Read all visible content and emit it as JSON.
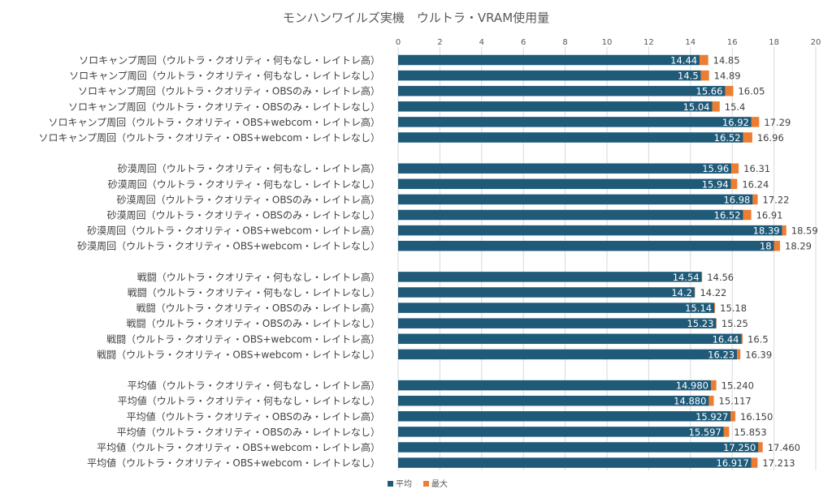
{
  "chart_data": {
    "type": "bar",
    "orientation": "horizontal",
    "stacked": true,
    "title": "モンハンワイルズ実機　ウルトラ・VRAM使用量",
    "xlim": [
      0,
      20
    ],
    "x_ticks": [
      "0",
      "2",
      "4",
      "6",
      "8",
      "10",
      "12",
      "14",
      "16",
      "18",
      "20"
    ],
    "grid": true,
    "legend_position": "bottom",
    "colors": {
      "avg": "#1f5a78",
      "max": "#ed7d31"
    },
    "series": [
      {
        "name": "平均",
        "color": "#1f5a78"
      },
      {
        "name": "最大",
        "color": "#ed7d31"
      }
    ],
    "groups": [
      {
        "rows": [
          {
            "label": "ソロキャンプ周回（ウルトラ・クオリティ・何もなし・レイトレ高）",
            "avg": 14.44,
            "max": 14.85,
            "avg_label": "14.44",
            "max_label": "14.85"
          },
          {
            "label": "ソロキャンプ周回（ウルトラ・クオリティ・何もなし・レイトレなし）",
            "avg": 14.5,
            "max": 14.89,
            "avg_label": "14.5",
            "max_label": "14.89"
          },
          {
            "label": "ソロキャンプ周回（ウルトラ・クオリティ・OBSのみ・レイトレ高）",
            "avg": 15.66,
            "max": 16.05,
            "avg_label": "15.66",
            "max_label": "16.05"
          },
          {
            "label": "ソロキャンプ周回（ウルトラ・クオリティ・OBSのみ・レイトレなし）",
            "avg": 15.04,
            "max": 15.4,
            "avg_label": "15.04",
            "max_label": "15.4"
          },
          {
            "label": "ソロキャンプ周回（ウルトラ・クオリティ・OBS+webcom・レイトレ高）",
            "avg": 16.92,
            "max": 17.29,
            "avg_label": "16.92",
            "max_label": "17.29"
          },
          {
            "label": "ソロキャンプ周回（ウルトラ・クオリティ・OBS+webcom・レイトレなし）",
            "avg": 16.52,
            "max": 16.96,
            "avg_label": "16.52",
            "max_label": "16.96"
          }
        ]
      },
      {
        "rows": [
          {
            "label": "砂漠周回（ウルトラ・クオリティ・何もなし・レイトレ高）",
            "avg": 15.96,
            "max": 16.31,
            "avg_label": "15.96",
            "max_label": "16.31"
          },
          {
            "label": "砂漠周回（ウルトラ・クオリティ・何もなし・レイトレなし）",
            "avg": 15.94,
            "max": 16.24,
            "avg_label": "15.94",
            "max_label": "16.24"
          },
          {
            "label": "砂漠周回（ウルトラ・クオリティ・OBSのみ・レイトレ高）",
            "avg": 16.98,
            "max": 17.22,
            "avg_label": "16.98",
            "max_label": "17.22"
          },
          {
            "label": "砂漠周回（ウルトラ・クオリティ・OBSのみ・レイトレなし）",
            "avg": 16.52,
            "max": 16.91,
            "avg_label": "16.52",
            "max_label": "16.91"
          },
          {
            "label": "砂漠周回（ウルトラ・クオリティ・OBS+webcom・レイトレ高）",
            "avg": 18.39,
            "max": 18.59,
            "avg_label": "18.39",
            "max_label": "18.59"
          },
          {
            "label": "砂漠周回（ウルトラ・クオリティ・OBS+webcom・レイトレなし）",
            "avg": 18,
            "max": 18.29,
            "avg_label": "18",
            "max_label": "18.29"
          }
        ]
      },
      {
        "rows": [
          {
            "label": "戦闘（ウルトラ・クオリティ・何もなし・レイトレ高）",
            "avg": 14.54,
            "max": 14.56,
            "avg_label": "14.54",
            "max_label": "14.56"
          },
          {
            "label": "戦闘（ウルトラ・クオリティ・何もなし・レイトレなし）",
            "avg": 14.2,
            "max": 14.22,
            "avg_label": "14.2",
            "max_label": "14.22"
          },
          {
            "label": "戦闘（ウルトラ・クオリティ・OBSのみ・レイトレ高）",
            "avg": 15.14,
            "max": 15.18,
            "avg_label": "15.14",
            "max_label": "15.18"
          },
          {
            "label": "戦闘（ウルトラ・クオリティ・OBSのみ・レイトレなし）",
            "avg": 15.23,
            "max": 15.25,
            "avg_label": "15.23",
            "max_label": "15.25"
          },
          {
            "label": "戦闘（ウルトラ・クオリティ・OBS+webcom・レイトレ高）",
            "avg": 16.44,
            "max": 16.5,
            "avg_label": "16.44",
            "max_label": "16.5"
          },
          {
            "label": "戦闘（ウルトラ・クオリティ・OBS+webcom・レイトレなし）",
            "avg": 16.23,
            "max": 16.39,
            "avg_label": "16.23",
            "max_label": "16.39"
          }
        ]
      },
      {
        "rows": [
          {
            "label": "平均値（ウルトラ・クオリティ・何もなし・レイトレ高）",
            "avg": 14.98,
            "max": 15.24,
            "avg_label": "14.980",
            "max_label": "15.240"
          },
          {
            "label": "平均値（ウルトラ・クオリティ・何もなし・レイトレなし）",
            "avg": 14.88,
            "max": 15.117,
            "avg_label": "14.880",
            "max_label": "15.117"
          },
          {
            "label": "平均値（ウルトラ・クオリティ・OBSのみ・レイトレ高）",
            "avg": 15.927,
            "max": 16.15,
            "avg_label": "15.927",
            "max_label": "16.150"
          },
          {
            "label": "平均値（ウルトラ・クオリティ・OBSのみ・レイトレなし）",
            "avg": 15.597,
            "max": 15.853,
            "avg_label": "15.597",
            "max_label": "15.853"
          },
          {
            "label": "平均値（ウルトラ・クオリティ・OBS+webcom・レイトレ高）",
            "avg": 17.25,
            "max": 17.46,
            "avg_label": "17.250",
            "max_label": "17.460"
          },
          {
            "label": "平均値（ウルトラ・クオリティ・OBS+webcom・レイトレなし）",
            "avg": 16.917,
            "max": 17.213,
            "avg_label": "16.917",
            "max_label": "17.213"
          }
        ]
      }
    ]
  }
}
